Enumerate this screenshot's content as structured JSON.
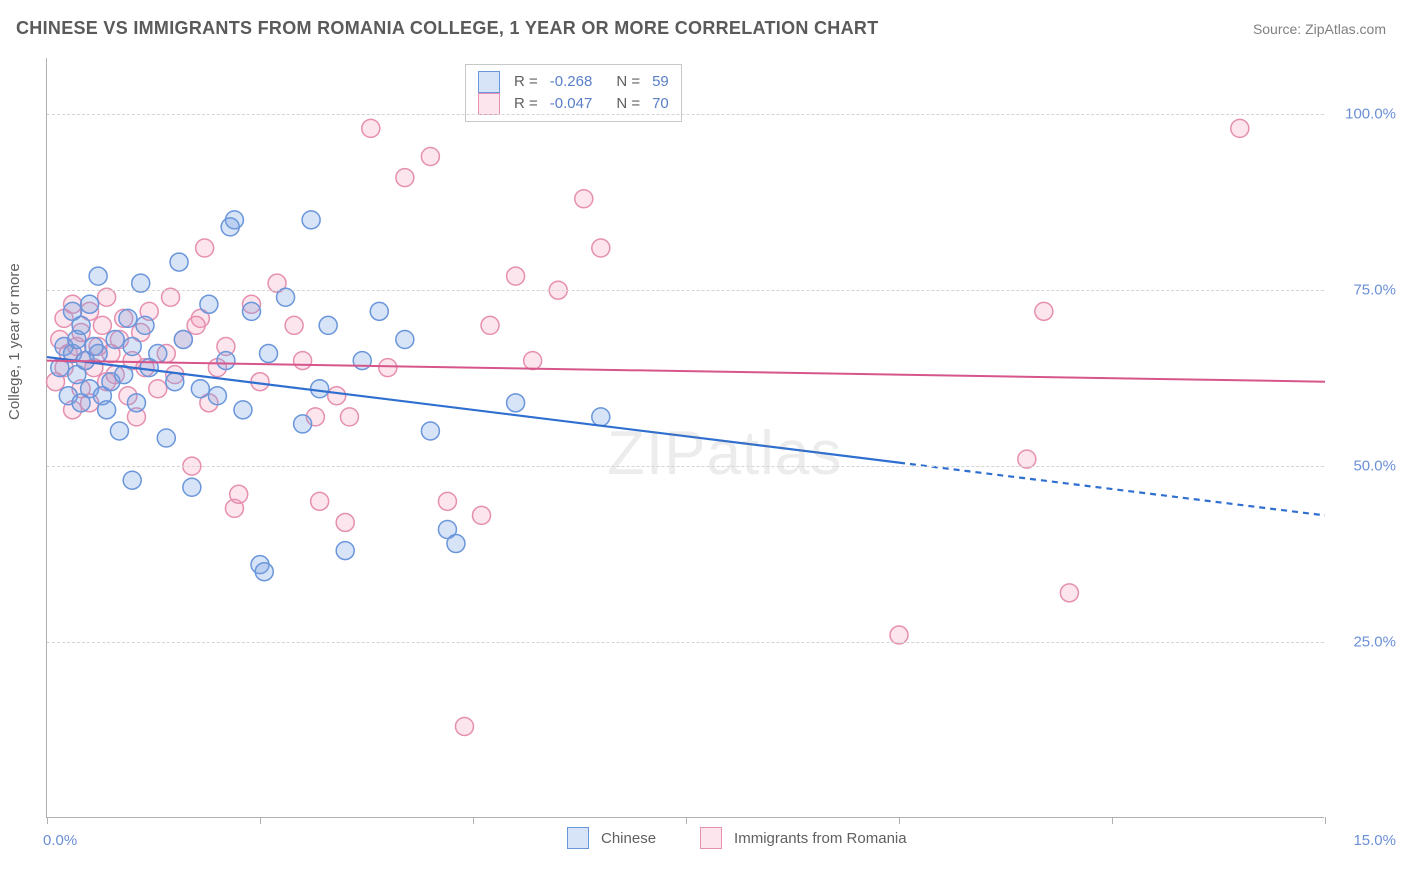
{
  "header": {
    "title": "CHINESE VS IMMIGRANTS FROM ROMANIA COLLEGE, 1 YEAR OR MORE CORRELATION CHART",
    "source": "Source: ZipAtlas.com"
  },
  "watermark": "ZIPatlas",
  "chart": {
    "type": "scatter",
    "ylabel": "College, 1 year or more",
    "xlim": [
      0,
      15
    ],
    "ylim": [
      0,
      108
    ],
    "xtick_positions": [
      0,
      2.5,
      5.0,
      7.5,
      10.0,
      12.5,
      15.0
    ],
    "xtick_labels": {
      "0": "0.0%",
      "15": "15.0%"
    },
    "ytick_positions": [
      25,
      50,
      75,
      100
    ],
    "ytick_labels": [
      "25.0%",
      "50.0%",
      "75.0%",
      "100.0%"
    ],
    "background_color": "#ffffff",
    "grid_color": "#d4d4d4",
    "marker_radius": 9,
    "marker_stroke_width": 1.5,
    "series": [
      {
        "name": "Chinese",
        "fill": "rgba(122,162,226,0.30)",
        "stroke": "#6a96db",
        "stats": {
          "R": "-0.268",
          "N": "59"
        },
        "trend": {
          "color": "#2f6fd0",
          "width": 2.2,
          "x1": 0,
          "y1": 65.5,
          "x2": 10.0,
          "y2": 50.5,
          "x3": 15.0,
          "y3": 43.0,
          "dashed_after": 10.0
        },
        "points": [
          [
            0.15,
            64
          ],
          [
            0.2,
            67
          ],
          [
            0.25,
            60
          ],
          [
            0.3,
            72
          ],
          [
            0.3,
            66
          ],
          [
            0.35,
            63
          ],
          [
            0.35,
            68
          ],
          [
            0.4,
            70
          ],
          [
            0.4,
            59
          ],
          [
            0.45,
            65
          ],
          [
            0.5,
            61
          ],
          [
            0.5,
            73
          ],
          [
            0.55,
            67
          ],
          [
            0.6,
            66
          ],
          [
            0.6,
            77
          ],
          [
            0.65,
            60
          ],
          [
            0.7,
            58
          ],
          [
            0.75,
            62
          ],
          [
            0.8,
            68
          ],
          [
            0.85,
            55
          ],
          [
            0.9,
            63
          ],
          [
            0.95,
            71
          ],
          [
            1.0,
            67
          ],
          [
            1.0,
            48
          ],
          [
            1.05,
            59
          ],
          [
            1.1,
            76
          ],
          [
            1.15,
            70
          ],
          [
            1.2,
            64
          ],
          [
            1.3,
            66
          ],
          [
            1.4,
            54
          ],
          [
            1.5,
            62
          ],
          [
            1.55,
            79
          ],
          [
            1.6,
            68
          ],
          [
            1.7,
            47
          ],
          [
            1.8,
            61
          ],
          [
            1.9,
            73
          ],
          [
            2.0,
            60
          ],
          [
            2.1,
            65
          ],
          [
            2.2,
            85
          ],
          [
            2.3,
            58
          ],
          [
            2.4,
            72
          ],
          [
            2.5,
            36
          ],
          [
            2.6,
            66
          ],
          [
            2.8,
            74
          ],
          [
            3.0,
            56
          ],
          [
            3.2,
            61
          ],
          [
            3.3,
            70
          ],
          [
            3.5,
            38
          ],
          [
            3.7,
            65
          ],
          [
            3.9,
            72
          ],
          [
            4.2,
            68
          ],
          [
            4.5,
            55
          ],
          [
            4.7,
            41
          ],
          [
            4.8,
            39
          ],
          [
            5.5,
            59
          ],
          [
            6.5,
            57
          ],
          [
            2.15,
            84
          ],
          [
            3.1,
            85
          ],
          [
            2.55,
            35
          ]
        ]
      },
      {
        "name": "Immigrants from Romania",
        "fill": "rgba(242,150,178,0.25)",
        "stroke": "#e68fb0",
        "stats": {
          "R": "-0.047",
          "N": "70"
        },
        "trend": {
          "color": "#d6558b",
          "width": 2.0,
          "x1": 0,
          "y1": 65.0,
          "x2": 15.0,
          "y2": 62.0
        },
        "points": [
          [
            0.1,
            62
          ],
          [
            0.15,
            68
          ],
          [
            0.2,
            71
          ],
          [
            0.2,
            64
          ],
          [
            0.25,
            66
          ],
          [
            0.3,
            58
          ],
          [
            0.3,
            73
          ],
          [
            0.35,
            67
          ],
          [
            0.4,
            61
          ],
          [
            0.4,
            69
          ],
          [
            0.45,
            65
          ],
          [
            0.5,
            72
          ],
          [
            0.5,
            59
          ],
          [
            0.55,
            64
          ],
          [
            0.6,
            67
          ],
          [
            0.65,
            70
          ],
          [
            0.7,
            62
          ],
          [
            0.7,
            74
          ],
          [
            0.75,
            66
          ],
          [
            0.8,
            63
          ],
          [
            0.85,
            68
          ],
          [
            0.9,
            71
          ],
          [
            0.95,
            60
          ],
          [
            1.0,
            65
          ],
          [
            1.05,
            57
          ],
          [
            1.1,
            69
          ],
          [
            1.15,
            64
          ],
          [
            1.2,
            72
          ],
          [
            1.3,
            61
          ],
          [
            1.4,
            66
          ],
          [
            1.45,
            74
          ],
          [
            1.5,
            63
          ],
          [
            1.6,
            68
          ],
          [
            1.7,
            50
          ],
          [
            1.8,
            71
          ],
          [
            1.85,
            81
          ],
          [
            1.9,
            59
          ],
          [
            2.0,
            64
          ],
          [
            2.1,
            67
          ],
          [
            2.2,
            44
          ],
          [
            2.4,
            73
          ],
          [
            2.5,
            62
          ],
          [
            2.7,
            76
          ],
          [
            2.9,
            70
          ],
          [
            3.0,
            65
          ],
          [
            3.2,
            45
          ],
          [
            3.4,
            60
          ],
          [
            3.5,
            42
          ],
          [
            3.55,
            57
          ],
          [
            3.8,
            98
          ],
          [
            4.0,
            64
          ],
          [
            4.2,
            91
          ],
          [
            4.5,
            94
          ],
          [
            4.7,
            45
          ],
          [
            4.9,
            13
          ],
          [
            5.1,
            43
          ],
          [
            5.2,
            70
          ],
          [
            5.5,
            77
          ],
          [
            5.7,
            65
          ],
          [
            6.0,
            75
          ],
          [
            6.3,
            88
          ],
          [
            6.5,
            81
          ],
          [
            10.0,
            26
          ],
          [
            11.5,
            51
          ],
          [
            11.7,
            72
          ],
          [
            12.0,
            32
          ],
          [
            14.0,
            98
          ],
          [
            2.25,
            46
          ],
          [
            3.15,
            57
          ],
          [
            1.75,
            70
          ]
        ]
      }
    ],
    "legend_bottom": [
      "Chinese",
      "Immigrants from Romania"
    ]
  }
}
